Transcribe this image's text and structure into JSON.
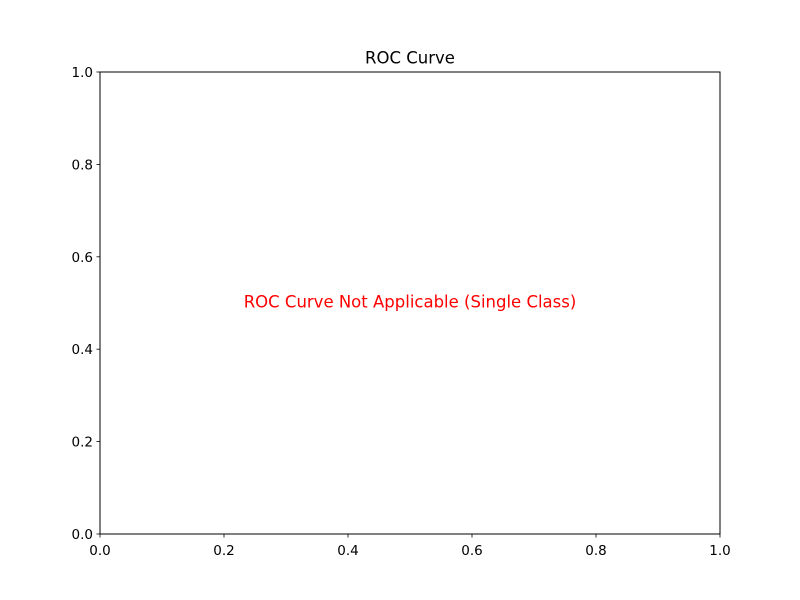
{
  "chart_data": {
    "type": "line",
    "title": "ROC Curve",
    "xlabel": "",
    "ylabel": "",
    "xlim": [
      0.0,
      1.0
    ],
    "ylim": [
      0.0,
      1.0
    ],
    "x_ticks": [
      "0.0",
      "0.2",
      "0.4",
      "0.6",
      "0.8",
      "1.0"
    ],
    "y_ticks": [
      "0.0",
      "0.2",
      "0.4",
      "0.6",
      "0.8",
      "1.0"
    ],
    "series": [],
    "grid": false,
    "annotation": {
      "text": "ROC Curve Not Applicable (Single Class)",
      "color": "#ff0000",
      "position": "center"
    }
  }
}
